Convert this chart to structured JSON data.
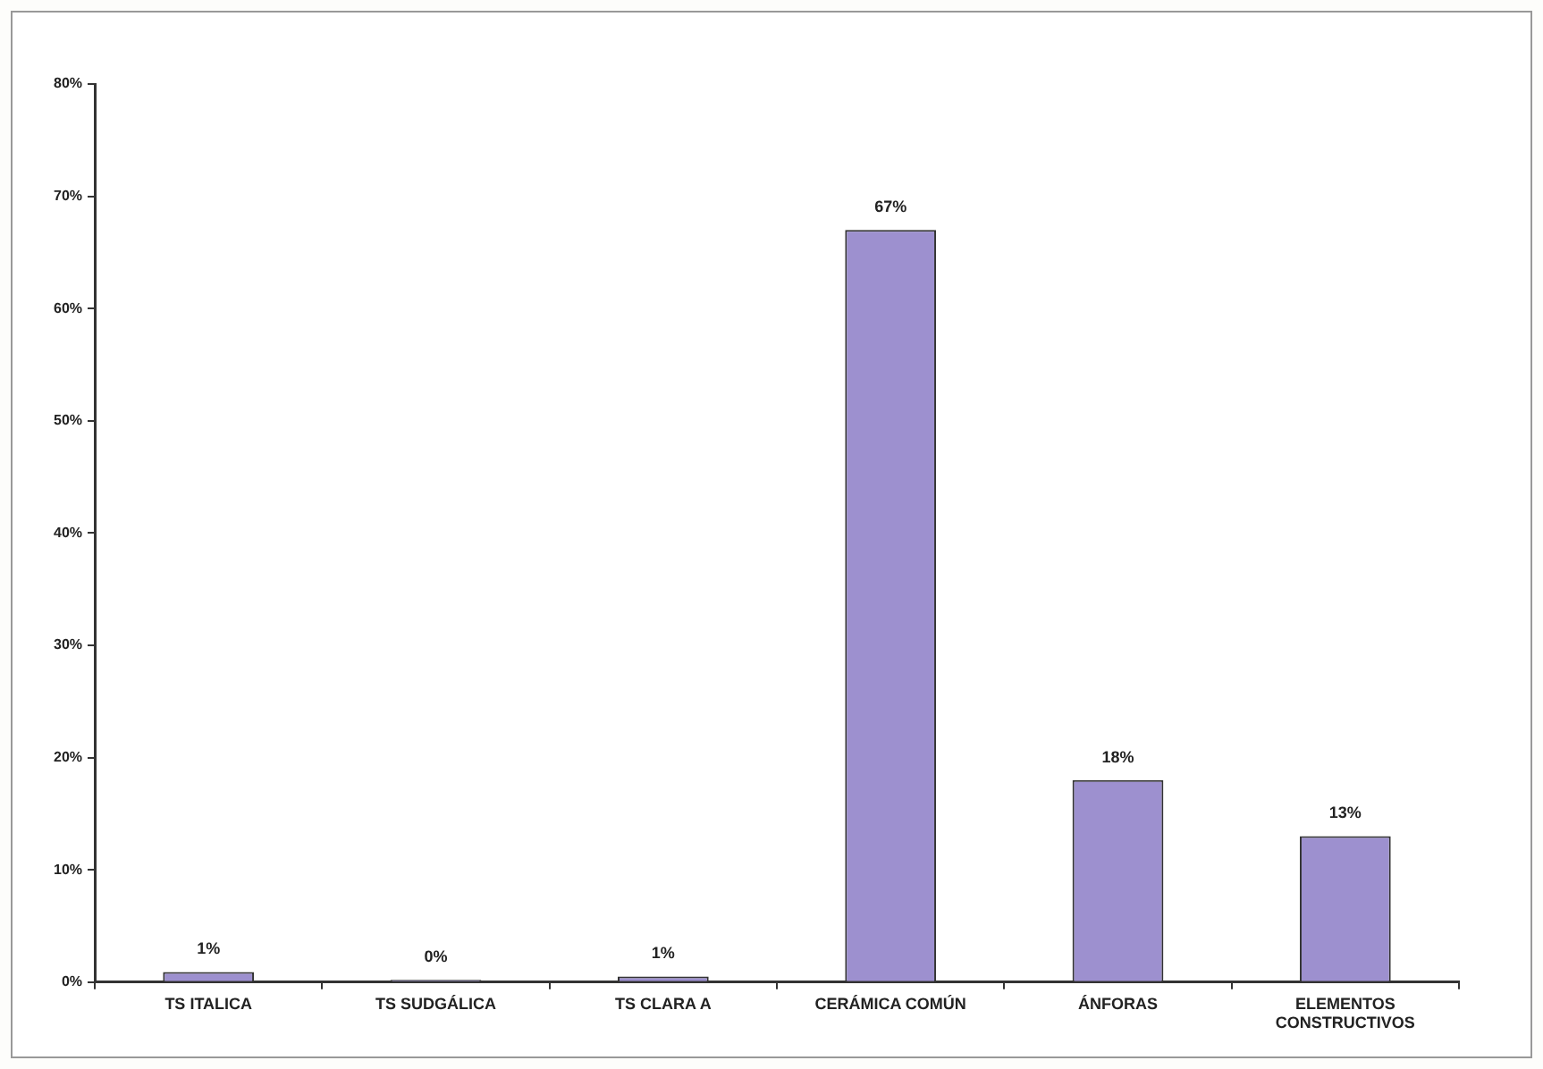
{
  "chart_data": {
    "type": "bar",
    "categories": [
      "TS ITALICA",
      "TS SUDGÁLICA",
      "TS CLARA A",
      "CERÁMICA COMÚN",
      "ÁNFORAS",
      "ELEMENTOS CONSTRUCTIVOS"
    ],
    "values": [
      0.9,
      0.2,
      0.5,
      67,
      18,
      13
    ],
    "value_labels": [
      "1%",
      "0%",
      "1%",
      "67%",
      "18%",
      "13%"
    ],
    "color": "#9d90cf",
    "ylim": [
      0,
      80
    ],
    "yticks": [
      {
        "value": 0,
        "label": "0%"
      },
      {
        "value": 10,
        "label": "10%"
      },
      {
        "value": 20,
        "label": "20%"
      },
      {
        "value": 30,
        "label": "30%"
      },
      {
        "value": 40,
        "label": "40%"
      },
      {
        "value": 50,
        "label": "50%"
      },
      {
        "value": 60,
        "label": "60%"
      },
      {
        "value": 70,
        "label": "70%"
      },
      {
        "value": 80,
        "label": "80%"
      }
    ],
    "grid": false,
    "legend": false
  }
}
